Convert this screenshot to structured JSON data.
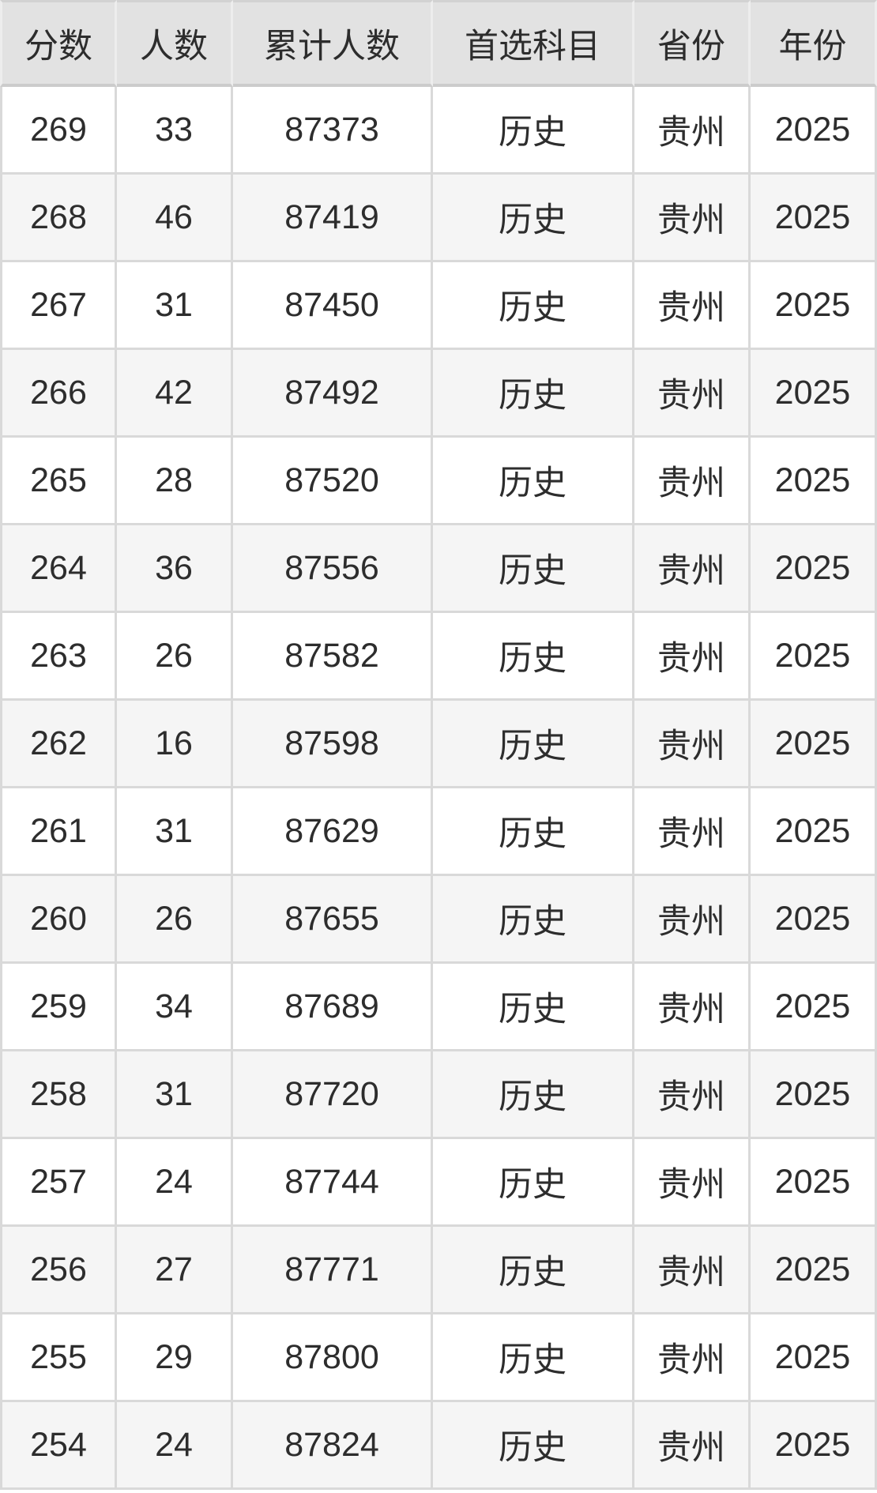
{
  "chart_data": {
    "type": "table",
    "columns": [
      "分数",
      "人数",
      "累计人数",
      "首选科目",
      "省份",
      "年份"
    ],
    "rows": [
      [
        269,
        33,
        87373,
        "历史",
        "贵州",
        2025
      ],
      [
        268,
        46,
        87419,
        "历史",
        "贵州",
        2025
      ],
      [
        267,
        31,
        87450,
        "历史",
        "贵州",
        2025
      ],
      [
        266,
        42,
        87492,
        "历史",
        "贵州",
        2025
      ],
      [
        265,
        28,
        87520,
        "历史",
        "贵州",
        2025
      ],
      [
        264,
        36,
        87556,
        "历史",
        "贵州",
        2025
      ],
      [
        263,
        26,
        87582,
        "历史",
        "贵州",
        2025
      ],
      [
        262,
        16,
        87598,
        "历史",
        "贵州",
        2025
      ],
      [
        261,
        31,
        87629,
        "历史",
        "贵州",
        2025
      ],
      [
        260,
        26,
        87655,
        "历史",
        "贵州",
        2025
      ],
      [
        259,
        34,
        87689,
        "历史",
        "贵州",
        2025
      ],
      [
        258,
        31,
        87720,
        "历史",
        "贵州",
        2025
      ],
      [
        257,
        24,
        87744,
        "历史",
        "贵州",
        2025
      ],
      [
        256,
        27,
        87771,
        "历史",
        "贵州",
        2025
      ],
      [
        255,
        29,
        87800,
        "历史",
        "贵州",
        2025
      ],
      [
        254,
        24,
        87824,
        "历史",
        "贵州",
        2025
      ]
    ]
  },
  "style": {
    "header_bg": "#e2e2e2",
    "row_bg": "#ffffff",
    "row_alt_bg": "#f5f5f5",
    "border_color": "#d9d9d9",
    "text_color": "#2d2d2d"
  }
}
